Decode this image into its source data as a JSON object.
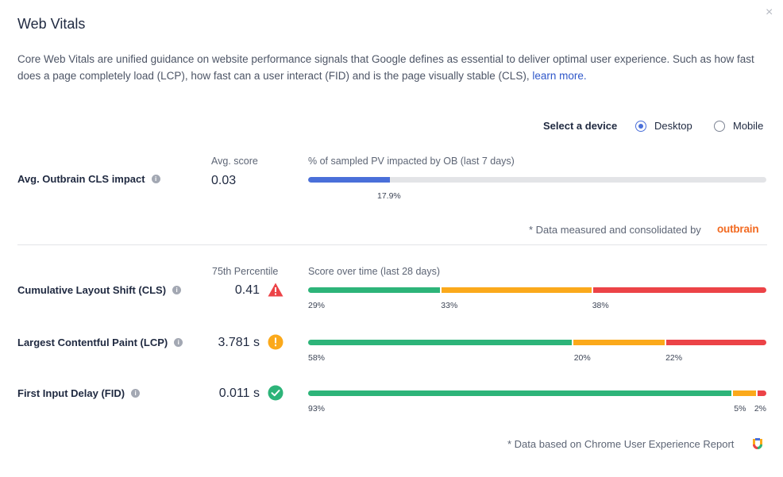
{
  "dialog": {
    "title": "Web Vitals",
    "close_icon": "×",
    "description_text": "Core Web Vitals are unified guidance on website performance signals that Google defines as essential to deliver optimal user experience. Such as how fast does a page completely load (LCP), how fast can a user interact (FID) and is the page visually stable (CLS),",
    "learn_more": "learn more."
  },
  "device": {
    "label": "Select a device",
    "options": [
      {
        "label": "Desktop",
        "selected": true
      },
      {
        "label": "Mobile",
        "selected": false
      }
    ]
  },
  "outbrain_cls": {
    "label": "Avg. Outbrain CLS impact",
    "score_header": "Avg. score",
    "score": "0.03",
    "bar_header": "% of sampled PV impacted by OB (last 7 days)",
    "impacted_fraction": 0.179,
    "impacted_label": "17.9%",
    "note": "* Data measured and consolidated by",
    "logo_text": "outbrain"
  },
  "vitals": {
    "percentile_header": "75th Percentile",
    "overtime_header": "Score over time (last 28 days)",
    "colors": {
      "good": "#2db479",
      "needs_improvement": "#fba91b",
      "poor": "#ec4347"
    },
    "rows": [
      {
        "label": "Cumulative Layout Shift (CLS)",
        "value": "0.41",
        "status": "poor",
        "status_icon": "warning-triangle-icon",
        "segments": [
          0.29,
          0.33,
          0.38
        ],
        "labels": [
          "29%",
          "33%",
          "38%"
        ]
      },
      {
        "label": "Largest Contentful Paint (LCP)",
        "value": "3.781 s",
        "status": "needs_improvement",
        "status_icon": "exclamation-circle-icon",
        "segments": [
          0.58,
          0.2,
          0.22
        ],
        "labels": [
          "58%",
          "20%",
          "22%"
        ]
      },
      {
        "label": "First Input Delay (FID)",
        "value": "0.011 s",
        "status": "good",
        "status_icon": "checkmark-circle-icon",
        "segments": [
          0.93,
          0.05,
          0.02
        ],
        "labels": [
          "93%",
          "5%",
          "2%"
        ]
      }
    ],
    "note": "* Data based on Chrome User Experience Report",
    "crux_icon": "chrome-ux-report-icon"
  }
}
